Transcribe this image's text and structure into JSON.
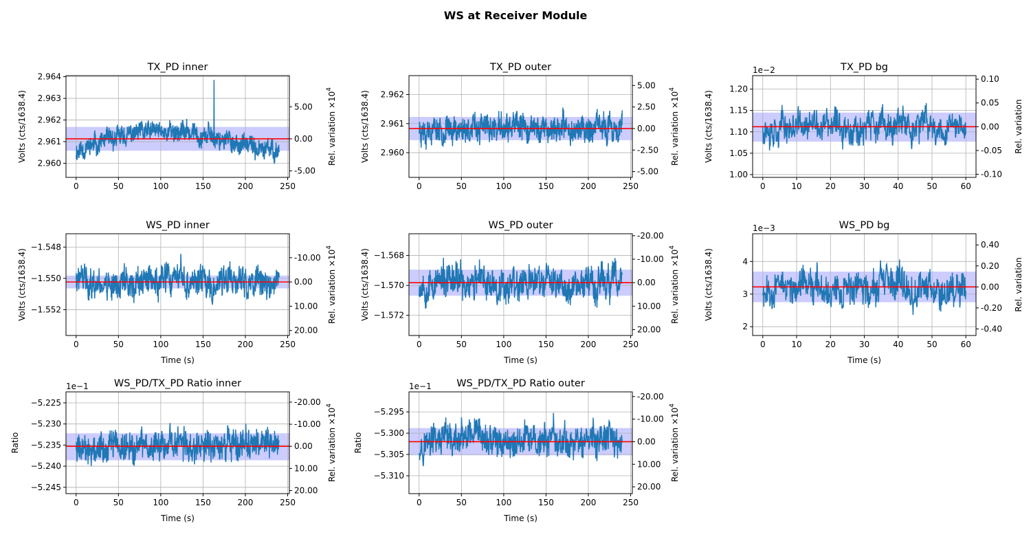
{
  "figure": {
    "suptitle": "WS at Receiver Module"
  },
  "colors": {
    "line": "#1f77b4",
    "mean": "#ff0000",
    "band": "#0000ff",
    "grid": "#b0b0b0"
  },
  "chart_data": [
    {
      "type": "line",
      "title": "TX_PD inner",
      "row": 0,
      "col": 0,
      "xlabel": "",
      "ylabel": "Volts (cts/1638.4)",
      "y2label": "Rel. variation ×10^4",
      "xlim": [
        -12,
        252
      ],
      "ylim": [
        2.95935,
        2.96405
      ],
      "xticks": [
        0,
        50,
        100,
        150,
        200,
        250
      ],
      "yticks": [
        2.96,
        2.961,
        2.962,
        2.963,
        2.964
      ],
      "ytick_labels": [
        "2.960",
        "2.961",
        "2.962",
        "2.963",
        "2.964"
      ],
      "offset_text": "",
      "y2ticks": [
        5.0,
        0.0,
        -5.0
      ],
      "y2tick_labels": [
        "5.00",
        "0.00",
        "-5.00"
      ],
      "mean": 2.96113,
      "band": [
        2.96058,
        2.96168
      ],
      "y2_unit_scale": 10000.0,
      "y2_inverted": false,
      "series": {
        "t_max": 240,
        "n": 900,
        "center": 2.96113,
        "amp": 0.00075,
        "trend": "arch",
        "trend_amp": 0.0009,
        "seed": 11,
        "spike_t": 163,
        "spike_v": 2.96385
      }
    },
    {
      "type": "line",
      "title": "TX_PD outer",
      "row": 0,
      "col": 1,
      "xlabel": "",
      "ylabel": "Volts (cts/1638.4)",
      "y2label": "Rel. variation ×10^4",
      "xlim": [
        -12,
        252
      ],
      "ylim": [
        2.95915,
        2.96265
      ],
      "xticks": [
        0,
        50,
        100,
        150,
        200,
        250
      ],
      "yticks": [
        2.96,
        2.961,
        2.962
      ],
      "ytick_labels": [
        "2.960",
        "2.961",
        "2.962"
      ],
      "offset_text": "",
      "y2ticks": [
        5.0,
        2.5,
        0.0,
        -2.5,
        -5.0
      ],
      "y2tick_labels": [
        "5.00",
        "2.50",
        "0.00",
        "-2.50",
        "-5.00"
      ],
      "mean": 2.96083,
      "band": [
        2.96043,
        2.96123
      ],
      "y2_unit_scale": 10000.0,
      "y2_inverted": false,
      "series": {
        "t_max": 240,
        "n": 900,
        "center": 2.96083,
        "amp": 0.00072,
        "trend": "flat",
        "trend_amp": 0,
        "seed": 23
      }
    },
    {
      "type": "line",
      "title": "TX_PD bg",
      "row": 0,
      "col": 2,
      "xlabel": "",
      "ylabel": "Volts (cts/1638.4)",
      "y2label": "Rel. variation",
      "xlim": [
        -3,
        63
      ],
      "ylim": [
        0.9935,
        1.2315
      ],
      "xticks": [
        0,
        10,
        20,
        30,
        40,
        50,
        60
      ],
      "yticks": [
        1.0,
        1.05,
        1.1,
        1.15,
        1.2
      ],
      "ytick_labels": [
        "1.00",
        "1.05",
        "1.10",
        "1.15",
        "1.20"
      ],
      "offset_text": "1e−2",
      "y2ticks": [
        0.1,
        0.05,
        0.0,
        -0.05,
        -0.1
      ],
      "y2tick_labels": [
        "0.10",
        "0.05",
        "0.00",
        "-0.05",
        "-0.10"
      ],
      "mean": 1.112,
      "band": [
        1.077,
        1.145
      ],
      "y2_unit_scale": 1,
      "y2_inverted": false,
      "series": {
        "t_max": 60,
        "n": 600,
        "center": 1.112,
        "amp": 0.06,
        "trend": "flat",
        "trend_amp": 0,
        "seed": 37
      }
    },
    {
      "type": "line",
      "title": "WS_PD inner",
      "row": 1,
      "col": 0,
      "xlabel": "Time (s)",
      "ylabel": "Volts (cts/1638.4)",
      "y2label": "Rel. variation ×10^4",
      "xlim": [
        -12,
        252
      ],
      "ylim": [
        -1.55365,
        -1.54715
      ],
      "xticks": [
        0,
        50,
        100,
        150,
        200,
        250
      ],
      "yticks": [
        -1.552,
        -1.55,
        -1.548
      ],
      "ytick_labels": [
        "−1.552",
        "−1.550",
        "−1.548"
      ],
      "offset_text": "",
      "y2ticks": [
        -10.0,
        0.0,
        10.0,
        20.0
      ],
      "y2tick_labels": [
        "-10.00",
        "0.00",
        "10.00",
        "20.00"
      ],
      "mean": -1.55023,
      "band": [
        -1.55064,
        -1.54982
      ],
      "y2_unit_scale": 10000.0,
      "y2_inverted": true,
      "series": {
        "t_max": 240,
        "n": 700,
        "center": -1.55023,
        "amp": 0.0017,
        "trend": "flat",
        "trend_amp": 0,
        "seed": 41
      }
    },
    {
      "type": "line",
      "title": "WS_PD outer",
      "row": 1,
      "col": 1,
      "xlabel": "Time (s)",
      "ylabel": "Volts (cts/1638.4)",
      "y2label": "Rel. variation ×10^4",
      "xlim": [
        -12,
        252
      ],
      "ylim": [
        -1.57335,
        -1.56655
      ],
      "xticks": [
        0,
        50,
        100,
        150,
        200,
        250
      ],
      "yticks": [
        -1.572,
        -1.57,
        -1.568
      ],
      "ytick_labels": [
        "−1.572",
        "−1.570",
        "−1.568"
      ],
      "offset_text": "",
      "y2ticks": [
        -20.0,
        -10.0,
        0.0,
        10.0,
        20.0
      ],
      "y2tick_labels": [
        "-20.00",
        "-10.00",
        "0.00",
        "10.00",
        "20.00"
      ],
      "mean": -1.56982,
      "band": [
        -1.57069,
        -1.56895
      ],
      "y2_unit_scale": 10000.0,
      "y2_inverted": true,
      "series": {
        "t_max": 240,
        "n": 700,
        "center": -1.56982,
        "amp": 0.0019,
        "trend": "flat",
        "trend_amp": 0,
        "seed": 53
      }
    },
    {
      "type": "line",
      "title": "WS_PD bg",
      "row": 1,
      "col": 2,
      "xlabel": "Time (s)",
      "ylabel": "Volts (cts/1638.4)",
      "y2label": "Rel. variation",
      "xlim": [
        -3,
        63
      ],
      "ylim": [
        1.73,
        4.85
      ],
      "xticks": [
        0,
        10,
        20,
        30,
        40,
        50,
        60
      ],
      "yticks": [
        2,
        3,
        4
      ],
      "ytick_labels": [
        "2",
        "3",
        "4"
      ],
      "offset_text": "1e−3",
      "y2ticks": [
        0.4,
        0.2,
        0.0,
        -0.2,
        -0.4
      ],
      "y2tick_labels": [
        "0.40",
        "0.20",
        "0.00",
        "-0.20",
        "-0.40"
      ],
      "mean": 3.22,
      "band": [
        2.75,
        3.69
      ],
      "y2_unit_scale": 1,
      "y2_inverted": false,
      "series": {
        "t_max": 60,
        "n": 600,
        "center": 3.22,
        "amp": 0.85,
        "trend": "flat",
        "trend_amp": 0,
        "seed": 67
      }
    },
    {
      "type": "line",
      "title": "WS_PD/TX_PD Ratio inner",
      "row": 2,
      "col": 0,
      "xlabel": "Time (s)",
      "ylabel": "Ratio",
      "y2label": "Rel. variation ×10^4",
      "xlim": [
        -12,
        252
      ],
      "ylim": [
        -5.2465,
        -5.2224
      ],
      "xticks": [
        0,
        50,
        100,
        150,
        200,
        250
      ],
      "yticks": [
        -5.245,
        -5.24,
        -5.235,
        -5.23,
        -5.225
      ],
      "ytick_labels": [
        "−5.245",
        "−5.240",
        "−5.235",
        "−5.230",
        "−5.225"
      ],
      "offset_text": "1e−1",
      "y2ticks": [
        -20.0,
        -10.0,
        0.0,
        10.0,
        20.0
      ],
      "y2tick_labels": [
        "-20.00",
        "-10.00",
        "0.00",
        "10.00",
        "20.00"
      ],
      "mean": -5.2353,
      "band": [
        -5.2386,
        -5.2322
      ],
      "y2_unit_scale": 10000.0,
      "y2_inverted": true,
      "series": {
        "t_max": 240,
        "n": 700,
        "center": -5.2353,
        "amp": 0.0062,
        "trend": "flat",
        "trend_amp": 0,
        "seed": 79
      }
    },
    {
      "type": "line",
      "title": "WS_PD/TX_PD Ratio outer",
      "row": 2,
      "col": 1,
      "xlabel": "Time (s)",
      "ylabel": "Ratio",
      "y2label": "Rel. variation ×10^4",
      "xlim": [
        -12,
        252
      ],
      "ylim": [
        -5.3142,
        -5.2903
      ],
      "xticks": [
        0,
        50,
        100,
        150,
        200,
        250
      ],
      "yticks": [
        -5.31,
        -5.305,
        -5.3,
        -5.295
      ],
      "ytick_labels": [
        "−5.310",
        "−5.305",
        "−5.300",
        "−5.295"
      ],
      "offset_text": "1e−1",
      "y2ticks": [
        -20.0,
        -10.0,
        0.0,
        10.0,
        20.0
      ],
      "y2tick_labels": [
        "-20.00",
        "-10.00",
        "0.00",
        "10.00",
        "20.00"
      ],
      "mean": -5.302,
      "band": [
        -5.3052,
        -5.2988
      ],
      "y2_unit_scale": 10000.0,
      "y2_inverted": true,
      "series": {
        "t_max": 240,
        "n": 700,
        "center": -5.302,
        "amp": 0.0064,
        "trend": "flat",
        "trend_amp": 0,
        "seed": 97
      }
    }
  ]
}
